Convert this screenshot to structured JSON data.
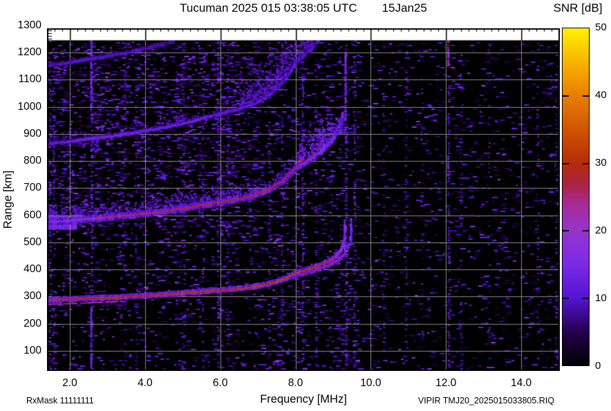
{
  "header": {
    "title": "Tucuman 2025 015 03:38:05 UTC",
    "date": "15Jan25"
  },
  "axes": {
    "x": {
      "label": "Frequency [MHz]",
      "tick_values": [
        2,
        4,
        6,
        8,
        10,
        12,
        14
      ],
      "tick_labels": [
        "2.0",
        "4.0",
        "6.0",
        "8.0",
        "10.0",
        "12.0",
        "14.0"
      ]
    },
    "y": {
      "label": "Range [km]",
      "tick_values": [
        100,
        200,
        300,
        400,
        500,
        600,
        700,
        800,
        900,
        1000,
        1100,
        1200,
        1300
      ],
      "tick_labels": [
        "100",
        "200",
        "300",
        "400",
        "500",
        "600",
        "700",
        "800",
        "900",
        "1000",
        "1100",
        "1200",
        "1300"
      ]
    }
  },
  "colorbar": {
    "title": "SNR [dB]",
    "tick_values": [
      0,
      10,
      20,
      30,
      40,
      50
    ],
    "tick_labels": [
      "0",
      "10",
      "20",
      "30",
      "40",
      "50"
    ]
  },
  "footer": {
    "rx_mask": "RxMask 11111111",
    "file": "VIPIR  TMJ20_2025015033805.RIQ"
  },
  "chart_data": {
    "type": "heatmap",
    "title": "Tucuman 2025 015 03:38:05 UTC",
    "date_label": "15Jan25",
    "xlabel": "Frequency [MHz]",
    "ylabel": "Range [km]",
    "zlabel": "SNR [dB]",
    "xlim_MHz": [
      1.39,
      15.05
    ],
    "ylim_km": [
      26,
      1289
    ],
    "zlim_dB": [
      0,
      50
    ],
    "grid": true,
    "background": "#000000",
    "grid_color": "#8a8a8a",
    "data_max_range_km": 1245,
    "colormap_stops": [
      [
        0,
        "#000000"
      ],
      [
        5,
        "#26004E"
      ],
      [
        10,
        "#5414D2"
      ],
      [
        15,
        "#7B2AE6"
      ],
      [
        20,
        "#9434CC"
      ],
      [
        24,
        "#A62C94"
      ],
      [
        27,
        "#AC2240"
      ],
      [
        30,
        "#B52C0A"
      ],
      [
        35,
        "#D05400"
      ],
      [
        40,
        "#E87E00"
      ],
      [
        45,
        "#F8B400"
      ],
      [
        50,
        "#FFF200"
      ]
    ],
    "main_trace": {
      "points_f_MHz_range_km": [
        [
          1.4,
          288
        ],
        [
          2.0,
          291
        ],
        [
          2.5,
          294
        ],
        [
          3.0,
          297
        ],
        [
          3.5,
          300
        ],
        [
          4.0,
          304
        ],
        [
          4.5,
          308
        ],
        [
          5.0,
          313
        ],
        [
          5.5,
          319
        ],
        [
          6.0,
          325
        ],
        [
          6.5,
          331
        ],
        [
          6.9,
          337
        ],
        [
          7.3,
          348
        ],
        [
          7.7,
          366
        ],
        [
          8.0,
          388
        ],
        [
          8.4,
          404
        ],
        [
          8.7,
          420
        ],
        [
          8.95,
          437
        ],
        [
          9.1,
          455
        ],
        [
          9.2,
          475
        ],
        [
          9.27,
          500
        ],
        [
          9.31,
          535
        ],
        [
          9.33,
          572
        ]
      ],
      "snr_profile": [
        [
          1.4,
          25
        ],
        [
          2,
          28
        ],
        [
          3,
          30
        ],
        [
          4,
          29
        ],
        [
          5,
          31
        ],
        [
          6,
          30
        ],
        [
          7,
          31
        ],
        [
          7.6,
          32
        ],
        [
          8.4,
          31
        ],
        [
          8.9,
          27
        ],
        [
          9.1,
          22
        ],
        [
          9.2,
          17
        ],
        [
          9.31,
          14
        ]
      ],
      "o_mode_cusp_MHz": 9.3,
      "x_mode_cusp_MHz": 9.47
    },
    "x_mode_branch": {
      "points_f_MHz_range_km": [
        [
          7.85,
          372
        ],
        [
          8.2,
          386
        ],
        [
          8.6,
          403
        ],
        [
          8.9,
          419
        ],
        [
          9.1,
          434
        ],
        [
          9.25,
          452
        ],
        [
          9.35,
          472
        ],
        [
          9.42,
          498
        ],
        [
          9.46,
          530
        ],
        [
          9.48,
          560
        ]
      ],
      "snr_profile": [
        [
          7.85,
          24
        ],
        [
          8.5,
          26
        ],
        [
          9.0,
          25
        ],
        [
          9.3,
          20
        ],
        [
          9.47,
          14
        ]
      ]
    },
    "multiple_hops": {
      "hops_visible": [
        2,
        3,
        4
      ],
      "relation": "range = n x main trace virtual height, clipped at 1245 km",
      "hop2_snr_profile": [
        [
          1.4,
          16
        ],
        [
          2.2,
          18
        ],
        [
          2.8,
          24
        ],
        [
          3.5,
          26
        ],
        [
          4.5,
          27
        ],
        [
          5.5,
          28
        ],
        [
          6.5,
          28
        ],
        [
          7.5,
          28
        ],
        [
          8.0,
          27
        ],
        [
          8.3,
          22
        ],
        [
          8.7,
          17
        ],
        [
          9.0,
          15
        ],
        [
          9.25,
          13
        ]
      ],
      "hop3_snr_profile": [
        [
          1.5,
          12
        ],
        [
          2.3,
          15
        ],
        [
          3.5,
          15
        ],
        [
          4.5,
          14
        ],
        [
          5.5,
          13
        ],
        [
          6.5,
          12
        ],
        [
          7.5,
          11
        ],
        [
          8.2,
          10
        ],
        [
          8.6,
          9
        ]
      ],
      "hop4_snr_profile": [
        [
          1.4,
          10
        ],
        [
          2.5,
          11
        ],
        [
          3.5,
          10
        ],
        [
          4.3,
          9
        ],
        [
          4.7,
          8
        ]
      ]
    },
    "spread_F": {
      "above_hop2_band_km": 60,
      "hop2_cusp_cloud": {
        "f_MHz": [
          8.05,
          9.38
        ],
        "range_km": [
          770,
          960
        ]
      },
      "hop3_cusp_cloud": {
        "f_MHz": [
          6.5,
          8.85
        ],
        "range_km": [
          1080,
          1245
        ]
      },
      "downward_wisps_MHz": [
        3.63,
        3.74
      ]
    },
    "rfi_stripes": [
      {
        "f_MHz": 1.45,
        "p": 0.45,
        "snr": 11
      },
      {
        "f_MHz": 1.55,
        "p": 0.35,
        "snr": 10
      },
      {
        "f_MHz": 2.56,
        "p": 0.5,
        "snr": 12,
        "blobs": [
          [
            1000,
            1245,
            14
          ],
          [
            40,
            260,
            13
          ]
        ]
      },
      {
        "f_MHz": 3.45,
        "p": 0.3,
        "snr": 10
      },
      {
        "f_MHz": 3.75,
        "p": 0.25,
        "snr": 9
      },
      {
        "f_MHz": 5.02,
        "p": 0.3,
        "snr": 10
      },
      {
        "f_MHz": 5.52,
        "p": 0.35,
        "snr": 11
      },
      {
        "f_MHz": 5.92,
        "p": 0.5,
        "snr": 12
      },
      {
        "f_MHz": 6.18,
        "p": 0.3,
        "snr": 10
      },
      {
        "f_MHz": 7.28,
        "p": 0.3,
        "snr": 10
      },
      {
        "f_MHz": 7.62,
        "p": 0.4,
        "snr": 11
      },
      {
        "f_MHz": 8.17,
        "p": 0.45,
        "snr": 12
      },
      {
        "f_MHz": 8.52,
        "p": 0.3,
        "snr": 10
      },
      {
        "f_MHz": 9.32,
        "p": 0.5,
        "snr": 13,
        "blobs": [
          [
            950,
            1200,
            14
          ]
        ]
      },
      {
        "f_MHz": 9.55,
        "p": 0.45,
        "snr": 12
      },
      {
        "f_MHz": 10.32,
        "p": 0.25,
        "snr": 9
      },
      {
        "f_MHz": 10.92,
        "p": 0.3,
        "snr": 10
      },
      {
        "f_MHz": 11.35,
        "p": 0.2,
        "snr": 9
      },
      {
        "f_MHz": 12.05,
        "p": 0.5,
        "snr": 12,
        "blobs": [
          [
            1150,
            1245,
            21
          ],
          [
            745,
            830,
            14
          ]
        ]
      },
      {
        "f_MHz": 12.38,
        "p": 0.25,
        "snr": 9
      },
      {
        "f_MHz": 13.12,
        "p": 0.2,
        "snr": 9
      },
      {
        "f_MHz": 14.42,
        "p": 0.25,
        "snr": 10
      },
      {
        "f_MHz": 14.9,
        "p": 0.3,
        "snr": 11
      }
    ]
  }
}
